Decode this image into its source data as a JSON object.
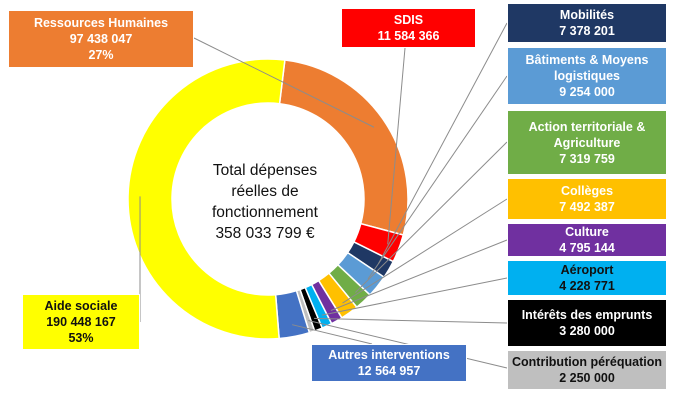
{
  "chart_data": {
    "type": "pie",
    "variant": "donut",
    "center_text": [
      "Total dépenses",
      "réelles de",
      "fonctionnement",
      "358 033 799 €"
    ],
    "total": 358033799,
    "slices": [
      {
        "name": "Ressources Humaines",
        "value_label": "97 438 047",
        "percent_label": "27%",
        "value": 97438047,
        "color": "#ED7D31"
      },
      {
        "name": "SDIS",
        "value_label": "11 584 366",
        "value": 11584366,
        "color": "#FF0000"
      },
      {
        "name": "Mobilités",
        "value_label": "7 378 201",
        "value": 7378201,
        "color": "#1F3864"
      },
      {
        "name": "Bâtiments & Moyens logistiques",
        "value_label": "9 254 000",
        "value": 9254000,
        "color": "#5B9BD5"
      },
      {
        "name": "Action territoriale & Agriculture",
        "value_label": "7 319 759",
        "value": 7319759,
        "color": "#70AD47"
      },
      {
        "name": "Collèges",
        "value_label": "7 492 387",
        "value": 7492387,
        "color": "#FFC000"
      },
      {
        "name": "Culture",
        "value_label": "4 795 144",
        "value": 4795144,
        "color": "#7030A0"
      },
      {
        "name": "Aéroport",
        "value_label": "4 228 771",
        "value": 4228771,
        "color": "#00B0F0"
      },
      {
        "name": "Intérêts des emprunts",
        "value_label": "3 280 000",
        "value": 3280000,
        "color": "#000000"
      },
      {
        "name": "Contribution péréquation",
        "value_label": "2 250 000",
        "value": 2250000,
        "color": "#BFBFBF"
      },
      {
        "name": "Autres interventions",
        "value_label": "12 564 957",
        "value": 12564957,
        "color": "#4472C4"
      },
      {
        "name": "Aide sociale",
        "value_label": "190 448 167",
        "percent_label": "53%",
        "value": 190448167,
        "color": "#FFFF00"
      }
    ]
  }
}
